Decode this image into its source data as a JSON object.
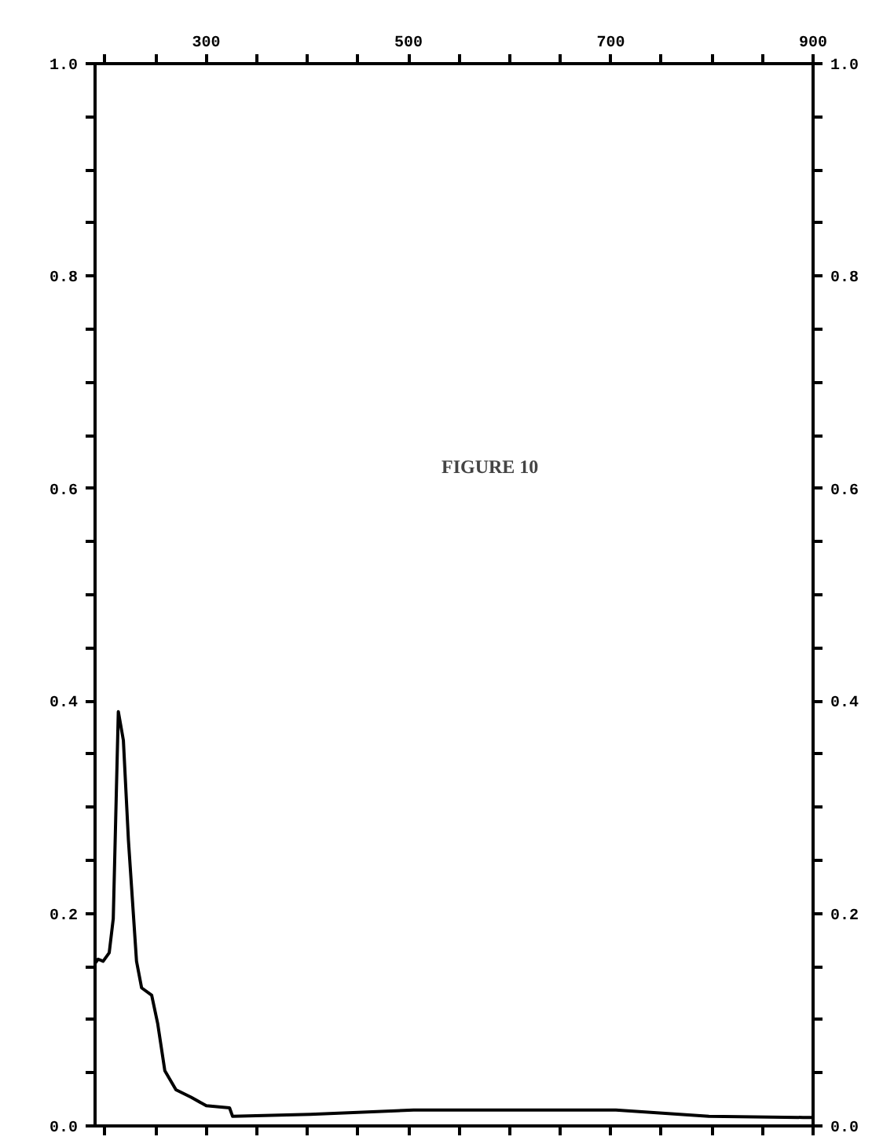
{
  "chart_data": {
    "type": "line",
    "annotations": [
      "FIGURE 10"
    ],
    "x": [
      190,
      193,
      198,
      204,
      208,
      213,
      218,
      223,
      231,
      236,
      246,
      252,
      259,
      270,
      285,
      300,
      323,
      326,
      403,
      505,
      543,
      705,
      797,
      890,
      900
    ],
    "series": [
      {
        "color": "#000000",
        "values": [
          0.153,
          0.157,
          0.155,
          0.163,
          0.195,
          0.39,
          0.363,
          0.269,
          0.155,
          0.13,
          0.123,
          0.096,
          0.052,
          0.034,
          0.027,
          0.019,
          0.017,
          0.009,
          0.011,
          0.015,
          0.015,
          0.015,
          0.009,
          0.008,
          0.008
        ]
      }
    ],
    "xlim": [
      190,
      900
    ],
    "xticks": [
      {
        "value": 200,
        "label": null
      },
      {
        "value": 250,
        "label": null
      },
      {
        "value": 300,
        "label": "300"
      },
      {
        "value": 350,
        "label": null
      },
      {
        "value": 400,
        "label": null
      },
      {
        "value": 450,
        "label": null
      },
      {
        "value": 500,
        "label": "500"
      },
      {
        "value": 550,
        "label": null
      },
      {
        "value": 600,
        "label": null
      },
      {
        "value": 650,
        "label": null
      },
      {
        "value": 700,
        "label": "700"
      },
      {
        "value": 750,
        "label": null
      },
      {
        "value": 800,
        "label": null
      },
      {
        "value": 850,
        "label": null
      },
      {
        "value": 900,
        "label": "900"
      }
    ],
    "ylim": [
      0,
      1
    ],
    "yticks": [
      {
        "value": 0,
        "label": "0.0"
      },
      {
        "value": 0.05,
        "label": null
      },
      {
        "value": 0.1,
        "label": null
      },
      {
        "value": 0.15,
        "label": null
      },
      {
        "value": 0.2,
        "label": "0.2"
      },
      {
        "value": 0.25,
        "label": null
      },
      {
        "value": 0.3,
        "label": null
      },
      {
        "value": 0.35,
        "label": null
      },
      {
        "value": 0.4,
        "label": "0.4"
      },
      {
        "value": 0.45,
        "label": null
      },
      {
        "value": 0.5,
        "label": null
      },
      {
        "value": 0.55,
        "label": null
      },
      {
        "value": 0.6,
        "label": "0.6"
      },
      {
        "value": 0.65,
        "label": null
      },
      {
        "value": 0.7,
        "label": null
      },
      {
        "value": 0.75,
        "label": null
      },
      {
        "value": 0.8,
        "label": "0.8"
      },
      {
        "value": 0.85,
        "label": null
      },
      {
        "value": 0.9,
        "label": null
      },
      {
        "value": 0.95,
        "label": null
      },
      {
        "value": 1,
        "label": "1.0"
      }
    ],
    "y2lim": [
      0,
      1
    ],
    "y2ticks": [
      {
        "value": 0,
        "label": "0.0"
      },
      {
        "value": 0.05,
        "label": null
      },
      {
        "value": 0.1,
        "label": null
      },
      {
        "value": 0.15,
        "label": null
      },
      {
        "value": 0.2,
        "label": "0.2"
      },
      {
        "value": 0.25,
        "label": null
      },
      {
        "value": 0.3,
        "label": null
      },
      {
        "value": 0.35,
        "label": null
      },
      {
        "value": 0.4,
        "label": "0.4"
      },
      {
        "value": 0.45,
        "label": null
      },
      {
        "value": 0.5,
        "label": null
      },
      {
        "value": 0.55,
        "label": null
      },
      {
        "value": 0.6,
        "label": "0.6"
      },
      {
        "value": 0.65,
        "label": null
      },
      {
        "value": 0.7,
        "label": null
      },
      {
        "value": 0.75,
        "label": null
      },
      {
        "value": 0.8,
        "label": "0.8"
      },
      {
        "value": 0.85,
        "label": null
      },
      {
        "value": 0.9,
        "label": null
      },
      {
        "value": 0.95,
        "label": null
      },
      {
        "value": 1,
        "label": "1.0"
      }
    ],
    "grid": false,
    "marker": "none",
    "line_style": "solid"
  }
}
